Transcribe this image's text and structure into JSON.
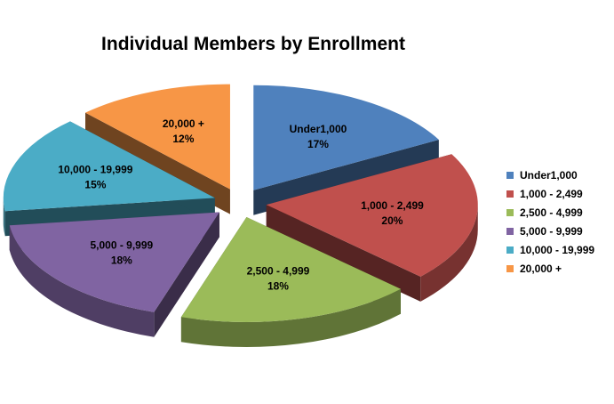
{
  "chart_data": {
    "type": "pie",
    "variant": "3d-exploded",
    "title": "Individual Members by Enrollment",
    "legend_position": "right",
    "slices": [
      {
        "name": "Under1,000",
        "label": "Under1,000",
        "pct_label": "17%",
        "value": 17,
        "color": "#4F81BD"
      },
      {
        "name": "1,000 - 2,499",
        "label": "1,000 - 2,499",
        "pct_label": "20%",
        "value": 20,
        "color": "#C0504D"
      },
      {
        "name": "2,500 - 4,999",
        "label": "2,500 - 4,999",
        "pct_label": "18%",
        "value": 18,
        "color": "#9BBB59"
      },
      {
        "name": "5,000 - 9,999",
        "label": "5,000 - 9,999",
        "pct_label": "18%",
        "value": 18,
        "color": "#8064A2"
      },
      {
        "name": "10,000 - 19,999",
        "label": "10,000 - 19,999",
        "pct_label": "15%",
        "value": 15,
        "color": "#4BACC6"
      },
      {
        "name": "20,000 +",
        "label": "20,000 +",
        "pct_label": "12%",
        "value": 12,
        "color": "#F79646"
      }
    ]
  }
}
